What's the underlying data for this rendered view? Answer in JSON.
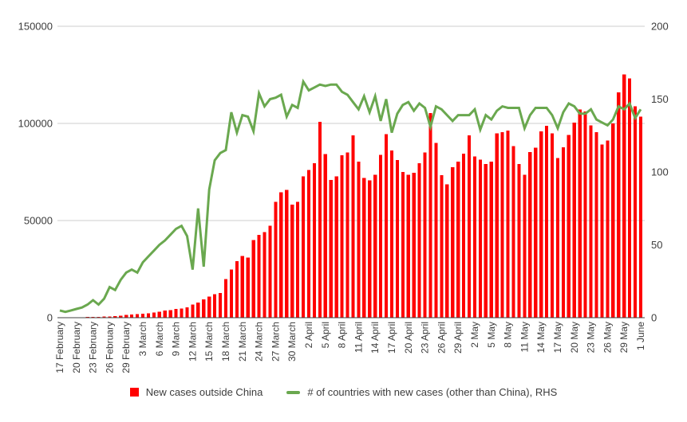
{
  "chart_data": {
    "type": "bar",
    "title": "",
    "x": [
      "17 February",
      "18 February",
      "19 February",
      "20 February",
      "21 February",
      "22 February",
      "23 February",
      "24 February",
      "25 February",
      "26 February",
      "27 February",
      "28 February",
      "29 February",
      "1 March",
      "2 March",
      "3 March",
      "4 March",
      "5 March",
      "6 March",
      "7 March",
      "8 March",
      "9 March",
      "10 March",
      "11 March",
      "12 March",
      "13 March",
      "14 March",
      "15 March",
      "16 March",
      "17 March",
      "18 March",
      "19 March",
      "20 March",
      "21 March",
      "22 March",
      "23 March",
      "24 March",
      "25 March",
      "26 March",
      "27 March",
      "28 March",
      "29 March",
      "30 March",
      "31 March",
      "1 April",
      "2 April",
      "3 April",
      "4 April",
      "5 April",
      "6 April",
      "7 April",
      "8 April",
      "9 April",
      "10 April",
      "11 April",
      "12 April",
      "13 April",
      "14 April",
      "15 April",
      "16 April",
      "17 April",
      "18 April",
      "19 April",
      "20 April",
      "21 April",
      "22 April",
      "23 April",
      "24 April",
      "25 April",
      "26 April",
      "27 April",
      "28 April",
      "29 April",
      "30 April",
      "1 May",
      "2 May",
      "3 May",
      "4 May",
      "5 May",
      "6 May",
      "7 May",
      "8 May",
      "9 May",
      "10 May",
      "11 May",
      "12 May",
      "13 May",
      "14 May",
      "15 May",
      "16 May",
      "17 May",
      "18 May",
      "19 May",
      "20 May",
      "21 May",
      "22 May",
      "23 May",
      "24 May",
      "25 May",
      "26 May",
      "27 May",
      "28 May",
      "29 May",
      "30 May",
      "31 May",
      "1 June"
    ],
    "x_tick_every": 3,
    "series": [
      {
        "name": "New cases outside China",
        "type": "bar",
        "axis": "left",
        "color": "#ff0000",
        "values": [
          150,
          150,
          200,
          250,
          300,
          400,
          500,
          450,
          600,
          700,
          900,
          1100,
          1400,
          1700,
          1800,
          2100,
          2300,
          2600,
          3100,
          3700,
          3800,
          4500,
          4800,
          5300,
          6700,
          7800,
          9400,
          10800,
          12000,
          12800,
          19800,
          24700,
          29000,
          31700,
          31000,
          39900,
          42600,
          44000,
          47400,
          59700,
          64500,
          65800,
          58300,
          59700,
          72700,
          76100,
          79500,
          100900,
          84300,
          70900,
          72700,
          83700,
          85000,
          93800,
          80400,
          72000,
          70600,
          73600,
          83900,
          94500,
          86100,
          81100,
          75100,
          73600,
          74500,
          79500,
          85000,
          105400,
          90000,
          73300,
          68600,
          77400,
          80400,
          84500,
          93800,
          82900,
          81300,
          79100,
          80400,
          94900,
          95500,
          96300,
          88400,
          79100,
          73600,
          85200,
          87600,
          96000,
          98800,
          94900,
          82200,
          87700,
          94100,
          100400,
          107200,
          106100,
          99000,
          95500,
          89100,
          91100,
          100000,
          116000,
          125300,
          123200,
          108900,
          103400
        ]
      },
      {
        "name": "# of countries with new cases (other than China), RHS",
        "type": "line",
        "axis": "right",
        "color": "#6aa84f",
        "values": [
          5,
          4,
          5,
          6,
          7,
          9,
          12,
          9,
          13,
          21,
          19,
          26,
          31,
          33,
          31,
          38,
          42,
          46,
          50,
          53,
          57,
          61,
          63,
          56,
          33,
          75,
          35,
          88,
          108,
          113,
          115,
          141,
          127,
          139,
          138,
          128,
          154,
          145,
          150,
          151,
          153,
          138,
          146,
          144,
          162,
          156,
          158,
          160,
          159,
          160,
          160,
          155,
          153,
          148,
          143,
          152,
          141,
          152,
          135,
          150,
          127,
          140,
          146,
          148,
          142,
          147,
          144,
          131,
          145,
          143,
          139,
          135,
          139,
          139,
          139,
          143,
          129,
          139,
          136,
          142,
          145,
          144,
          144,
          144,
          130,
          139,
          144,
          144,
          144,
          139,
          130,
          141,
          147,
          145,
          140,
          140,
          143,
          136,
          134,
          132,
          136,
          145,
          143,
          147,
          137,
          143
        ]
      }
    ],
    "left_axis": {
      "min": 0,
      "max": 150000,
      "ticks": [
        0,
        50000,
        100000,
        150000
      ],
      "labels": [
        "0",
        "50000",
        "100000",
        "150000"
      ]
    },
    "right_axis": {
      "min": 0,
      "max": 200,
      "ticks": [
        0,
        50,
        100,
        150,
        200
      ],
      "labels": [
        "0",
        "50",
        "100",
        "150",
        "200"
      ]
    },
    "grid": "horizontal",
    "legend_position": "bottom",
    "colors": {
      "grid": "#cccccc",
      "axis_line": "#424242",
      "tick_text": "#3c3c3c",
      "background": "#ffffff"
    }
  }
}
